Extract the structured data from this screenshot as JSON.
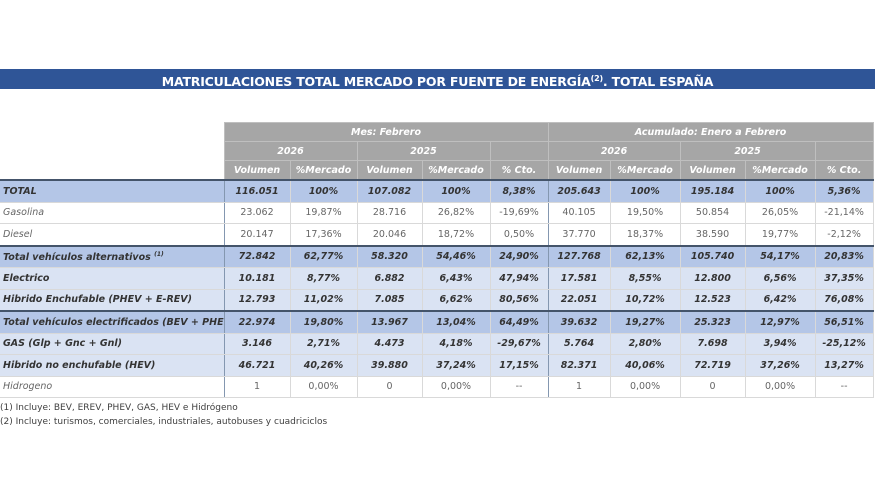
{
  "title": {
    "text": "MATRICULACIONES TOTAL MERCADO POR FUENTE DE ENERGÍA",
    "sup": "(2)",
    "suffix": ". TOTAL ESPAÑA"
  },
  "header": {
    "month": "Mes: Febrero",
    "cumulative": "Acumulado: Enero a Febrero",
    "year_a": "2026",
    "year_b": "2025",
    "cols": [
      "Volumen",
      "%Mercado",
      "Volumen",
      "%Mercado",
      "% Cto.",
      "Volumen",
      "%Mercado",
      "Volumen",
      "%Mercado",
      "% Cto."
    ]
  },
  "rows": [
    {
      "label": "TOTAL",
      "style": "hi",
      "values": [
        "116.051",
        "100%",
        "107.082",
        "100%",
        "8,38%",
        "205.643",
        "100%",
        "195.184",
        "100%",
        "5,36%"
      ]
    },
    {
      "label": "Gasolina",
      "style": "plain",
      "values": [
        "23.062",
        "19,87%",
        "28.716",
        "26,82%",
        "-19,69%",
        "40.105",
        "19,50%",
        "50.854",
        "26,05%",
        "-21,14%"
      ]
    },
    {
      "label": "Diesel",
      "style": "plain",
      "values": [
        "20.147",
        "17,36%",
        "20.046",
        "18,72%",
        "0,50%",
        "37.770",
        "18,37%",
        "38.590",
        "19,77%",
        "-2,12%"
      ]
    },
    {
      "label": "Total vehículos alternativos",
      "sup": "(1)",
      "style": "hi",
      "values": [
        "72.842",
        "62,77%",
        "58.320",
        "54,46%",
        "24,90%",
        "127.768",
        "62,13%",
        "105.740",
        "54,17%",
        "20,83%"
      ]
    },
    {
      "label": "Electrico",
      "style": "mid",
      "values": [
        "10.181",
        "8,77%",
        "6.882",
        "6,43%",
        "47,94%",
        "17.581",
        "8,55%",
        "12.800",
        "6,56%",
        "37,35%"
      ]
    },
    {
      "label": "Hibrido Enchufable (PHEV + E-REV)",
      "style": "mid",
      "values": [
        "12.793",
        "11,02%",
        "7.085",
        "6,62%",
        "80,56%",
        "22.051",
        "10,72%",
        "12.523",
        "6,42%",
        "76,08%"
      ]
    },
    {
      "label": "Total vehículos electrificados (BEV + PHEV)",
      "style": "hi",
      "values": [
        "22.974",
        "19,80%",
        "13.967",
        "13,04%",
        "64,49%",
        "39.632",
        "19,27%",
        "25.323",
        "12,97%",
        "56,51%"
      ]
    },
    {
      "label": "GAS (Glp + Gnc + Gnl)",
      "style": "mid",
      "values": [
        "3.146",
        "2,71%",
        "4.473",
        "4,18%",
        "-29,67%",
        "5.764",
        "2,80%",
        "7.698",
        "3,94%",
        "-25,12%"
      ]
    },
    {
      "label": "Hibrido no enchufable (HEV)",
      "style": "mid",
      "values": [
        "46.721",
        "40,26%",
        "39.880",
        "37,24%",
        "17,15%",
        "82.371",
        "40,06%",
        "72.719",
        "37,26%",
        "13,27%"
      ]
    },
    {
      "label": "Hidrogeno",
      "style": "plain",
      "values": [
        "1",
        "0,00%",
        "0",
        "0,00%",
        "--",
        "1",
        "0,00%",
        "0",
        "0,00%",
        "--"
      ]
    }
  ],
  "footnotes": [
    "(1) Incluye: BEV, EREV, PHEV, GAS, HEV e Hidrógeno",
    "(2) Incluye: turismos, comerciales, industriales, autobuses y cuadriciclos"
  ],
  "colors": {
    "title_bg": "#2f5597",
    "header_bg": "#a6a6a6",
    "total_row": "#b4c6e7",
    "sub_row": "#dae3f3",
    "positive": "#2e8b1e",
    "negative": "#e00000"
  }
}
